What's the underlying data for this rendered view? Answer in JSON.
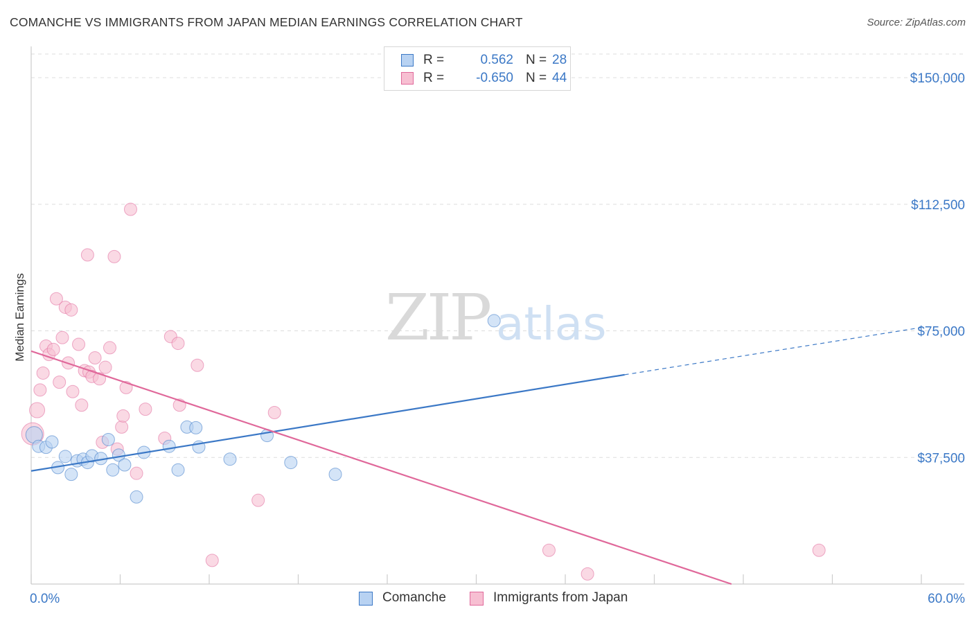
{
  "title": "COMANCHE VS IMMIGRANTS FROM JAPAN MEDIAN EARNINGS CORRELATION CHART",
  "source": "Source: ZipAtlas.com",
  "watermark": {
    "zip": "ZIP",
    "atlas": "atlas"
  },
  "colors": {
    "blue": "#3b78c6",
    "blue_fill": "#b8d2f2",
    "pink": "#e0689a",
    "pink_fill": "#f7bfd2",
    "grid": "#dddddd",
    "axis_label": "#3b78c6"
  },
  "legend_top": {
    "series": [
      {
        "r_label": "R =",
        "r_value": "0.562",
        "n_label": "N =",
        "n_value": "28"
      },
      {
        "r_label": "R =",
        "r_value": "-0.650",
        "n_label": "N =",
        "n_value": "44"
      }
    ]
  },
  "chart_data": {
    "type": "scatter",
    "title": "COMANCHE VS IMMIGRANTS FROM JAPAN MEDIAN EARNINGS CORRELATION CHART",
    "xlabel": "",
    "ylabel": "Median Earnings",
    "xlim": [
      0,
      60
    ],
    "ylim": [
      0,
      157000
    ],
    "x_tick_labels": [
      "0.0%",
      "60.0%"
    ],
    "y_ticks": [
      37500,
      75000,
      112500,
      150000
    ],
    "y_tick_labels": [
      "$37,500",
      "$75,000",
      "$112,500",
      "$150,000"
    ],
    "grid": true,
    "legend": "bottom-center",
    "series": [
      {
        "name": "Comanche",
        "color": "#3b78c6",
        "r": 0.562,
        "n": 28,
        "trend": {
          "x1": 0,
          "y1": 33500,
          "x2": 40,
          "y2": 62000,
          "dash_to_x": 60,
          "dash_to_y": 76000
        },
        "points": [
          [
            0.2,
            44200,
            12
          ],
          [
            0.5,
            40800,
            9
          ],
          [
            1.0,
            40500,
            9
          ],
          [
            1.4,
            42100,
            9
          ],
          [
            1.8,
            34500,
            9
          ],
          [
            2.3,
            37800,
            9
          ],
          [
            2.7,
            32500,
            9
          ],
          [
            3.1,
            36500,
            9
          ],
          [
            3.5,
            37000,
            9
          ],
          [
            3.8,
            36000,
            9
          ],
          [
            4.1,
            38000,
            9
          ],
          [
            4.7,
            37200,
            9
          ],
          [
            5.2,
            42800,
            9
          ],
          [
            5.5,
            33800,
            9
          ],
          [
            5.9,
            38200,
            9
          ],
          [
            6.3,
            35300,
            9
          ],
          [
            7.1,
            25800,
            9
          ],
          [
            7.6,
            39000,
            9
          ],
          [
            9.3,
            40800,
            9
          ],
          [
            9.9,
            33800,
            9
          ],
          [
            10.5,
            46500,
            9
          ],
          [
            11.1,
            46300,
            9
          ],
          [
            11.3,
            40600,
            9
          ],
          [
            13.4,
            37000,
            9
          ],
          [
            15.9,
            44000,
            9
          ],
          [
            17.5,
            36000,
            9
          ],
          [
            20.5,
            32500,
            9
          ],
          [
            31.2,
            78000,
            9
          ]
        ]
      },
      {
        "name": "Immigrants from Japan",
        "color": "#e0689a",
        "r": -0.65,
        "n": 44,
        "trend": {
          "x1": 0,
          "y1": 69000,
          "x2": 47.2,
          "y2": 0
        },
        "points": [
          [
            0.1,
            44500,
            16
          ],
          [
            0.4,
            51500,
            11
          ],
          [
            0.6,
            57500,
            9
          ],
          [
            0.8,
            62500,
            9
          ],
          [
            1.0,
            70500,
            9
          ],
          [
            1.2,
            68000,
            9
          ],
          [
            1.5,
            69500,
            9
          ],
          [
            1.7,
            84500,
            9
          ],
          [
            1.9,
            59800,
            9
          ],
          [
            2.1,
            73000,
            9
          ],
          [
            2.3,
            82000,
            9
          ],
          [
            2.5,
            65500,
            9
          ],
          [
            2.7,
            81200,
            9
          ],
          [
            2.8,
            57000,
            9
          ],
          [
            3.2,
            71000,
            9
          ],
          [
            3.4,
            53000,
            9
          ],
          [
            3.6,
            63200,
            9
          ],
          [
            3.8,
            97500,
            9
          ],
          [
            3.9,
            62800,
            9
          ],
          [
            4.1,
            61500,
            9
          ],
          [
            4.3,
            67000,
            9
          ],
          [
            4.6,
            60800,
            9
          ],
          [
            4.8,
            42000,
            9
          ],
          [
            5.0,
            64200,
            9
          ],
          [
            5.3,
            70000,
            9
          ],
          [
            5.6,
            97000,
            9
          ],
          [
            5.8,
            40000,
            9
          ],
          [
            6.1,
            46500,
            9
          ],
          [
            6.2,
            49800,
            9
          ],
          [
            6.4,
            58200,
            9
          ],
          [
            6.7,
            111000,
            9
          ],
          [
            7.1,
            32800,
            9
          ],
          [
            7.7,
            51800,
            9
          ],
          [
            9.0,
            43200,
            9
          ],
          [
            9.4,
            73300,
            9
          ],
          [
            9.9,
            71300,
            9
          ],
          [
            10.0,
            53000,
            9
          ],
          [
            11.2,
            64800,
            9
          ],
          [
            12.2,
            7000,
            9
          ],
          [
            15.3,
            24800,
            9
          ],
          [
            16.4,
            50800,
            9
          ],
          [
            34.9,
            10000,
            9
          ],
          [
            37.5,
            3000,
            9
          ],
          [
            53.1,
            10000,
            9
          ]
        ]
      }
    ]
  },
  "legend_bottom": {
    "items": [
      {
        "label": "Comanche"
      },
      {
        "label": "Immigrants from Japan"
      }
    ]
  }
}
